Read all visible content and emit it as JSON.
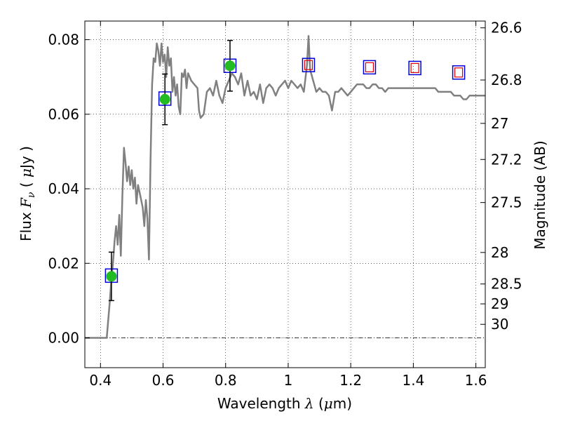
{
  "chart_data": {
    "type": "line",
    "xlabel": "Wavelength",
    "xlabel_symbol": "λ",
    "xlabel_unit_open": " (",
    "xlabel_unit_mu": "μ",
    "xlabel_unit_rest": "m)",
    "ylabel_text": "Flux",
    "ylabel_symbol": "F",
    "ylabel_sub": "ν",
    "ylabel_unit_open": "( ",
    "ylabel_unit_mu": "μ",
    "ylabel_unit_rest": "Jy )",
    "y2label": "Magnitude (AB)",
    "xlim": [
      0.35,
      1.63
    ],
    "ylim": [
      -0.008,
      0.085
    ],
    "grid": true,
    "x_ticks": [
      0.4,
      0.6,
      0.8,
      1.0,
      1.2,
      1.4,
      1.6
    ],
    "x_tick_labels": [
      "0.4",
      "0.6",
      "0.8",
      "1",
      "1.2",
      "1.4",
      "1.6"
    ],
    "y_ticks": [
      0.0,
      0.02,
      0.04,
      0.06,
      0.08
    ],
    "y_tick_labels": [
      "0.00",
      "0.02",
      "0.04",
      "0.06",
      "0.08"
    ],
    "mag_ticks": [
      {
        "label": "26.6",
        "mag": 26.6
      },
      {
        "label": "26.8",
        "mag": 26.8
      },
      {
        "label": "27",
        "mag": 27.0
      },
      {
        "label": "27.2",
        "mag": 27.2
      },
      {
        "label": "27.5",
        "mag": 27.5
      },
      {
        "label": "28",
        "mag": 28.0
      },
      {
        "label": "28.5",
        "mag": 28.5
      },
      {
        "label": "29",
        "mag": 29.0
      },
      {
        "label": "30",
        "mag": 30.0
      }
    ],
    "colors": {
      "spectrum": "#808080",
      "observed_marker": "#22bb22",
      "box_edge": "#0000dd",
      "model_inner": "#dd0000",
      "errorbar": "#000000"
    },
    "series": [
      {
        "kind": "spectrum",
        "points": [
          [
            0.35,
            0.0
          ],
          [
            0.42,
            0.0
          ],
          [
            0.43,
            0.01
          ],
          [
            0.435,
            0.016
          ],
          [
            0.44,
            0.02
          ],
          [
            0.445,
            0.026
          ],
          [
            0.45,
            0.03
          ],
          [
            0.455,
            0.025
          ],
          [
            0.46,
            0.033
          ],
          [
            0.465,
            0.022
          ],
          [
            0.47,
            0.038
          ],
          [
            0.475,
            0.051
          ],
          [
            0.48,
            0.047
          ],
          [
            0.485,
            0.042
          ],
          [
            0.49,
            0.046
          ],
          [
            0.495,
            0.041
          ],
          [
            0.5,
            0.045
          ],
          [
            0.505,
            0.04
          ],
          [
            0.51,
            0.043
          ],
          [
            0.515,
            0.036
          ],
          [
            0.52,
            0.041
          ],
          [
            0.525,
            0.039
          ],
          [
            0.53,
            0.037
          ],
          [
            0.535,
            0.035
          ],
          [
            0.54,
            0.03
          ],
          [
            0.545,
            0.037
          ],
          [
            0.55,
            0.032
          ],
          [
            0.555,
            0.021
          ],
          [
            0.56,
            0.048
          ],
          [
            0.565,
            0.068
          ],
          [
            0.57,
            0.075
          ],
          [
            0.575,
            0.074
          ],
          [
            0.58,
            0.079
          ],
          [
            0.585,
            0.077
          ],
          [
            0.59,
            0.073
          ],
          [
            0.595,
            0.079
          ],
          [
            0.6,
            0.074
          ],
          [
            0.605,
            0.076
          ],
          [
            0.61,
            0.07
          ],
          [
            0.615,
            0.078
          ],
          [
            0.62,
            0.073
          ],
          [
            0.625,
            0.075
          ],
          [
            0.63,
            0.066
          ],
          [
            0.635,
            0.07
          ],
          [
            0.64,
            0.065
          ],
          [
            0.645,
            0.068
          ],
          [
            0.65,
            0.062
          ],
          [
            0.655,
            0.06
          ],
          [
            0.66,
            0.071
          ],
          [
            0.665,
            0.07
          ],
          [
            0.67,
            0.072
          ],
          [
            0.675,
            0.067
          ],
          [
            0.68,
            0.071
          ],
          [
            0.69,
            0.069
          ],
          [
            0.7,
            0.068
          ],
          [
            0.71,
            0.067
          ],
          [
            0.715,
            0.061
          ],
          [
            0.72,
            0.059
          ],
          [
            0.73,
            0.06
          ],
          [
            0.74,
            0.066
          ],
          [
            0.75,
            0.067
          ],
          [
            0.76,
            0.065
          ],
          [
            0.77,
            0.069
          ],
          [
            0.78,
            0.065
          ],
          [
            0.79,
            0.063
          ],
          [
            0.8,
            0.067
          ],
          [
            0.81,
            0.069
          ],
          [
            0.82,
            0.071
          ],
          [
            0.83,
            0.07
          ],
          [
            0.84,
            0.068
          ],
          [
            0.85,
            0.071
          ],
          [
            0.86,
            0.065
          ],
          [
            0.87,
            0.069
          ],
          [
            0.88,
            0.065
          ],
          [
            0.89,
            0.066
          ],
          [
            0.9,
            0.064
          ],
          [
            0.91,
            0.068
          ],
          [
            0.92,
            0.063
          ],
          [
            0.93,
            0.067
          ],
          [
            0.94,
            0.068
          ],
          [
            0.95,
            0.067
          ],
          [
            0.96,
            0.065
          ],
          [
            0.97,
            0.067
          ],
          [
            0.98,
            0.068
          ],
          [
            0.99,
            0.069
          ],
          [
            1.0,
            0.067
          ],
          [
            1.01,
            0.069
          ],
          [
            1.02,
            0.068
          ],
          [
            1.03,
            0.067
          ],
          [
            1.04,
            0.068
          ],
          [
            1.05,
            0.066
          ],
          [
            1.06,
            0.073
          ],
          [
            1.065,
            0.081
          ],
          [
            1.07,
            0.072
          ],
          [
            1.08,
            0.069
          ],
          [
            1.09,
            0.066
          ],
          [
            1.1,
            0.067
          ],
          [
            1.11,
            0.066
          ],
          [
            1.12,
            0.066
          ],
          [
            1.13,
            0.065
          ],
          [
            1.14,
            0.061
          ],
          [
            1.15,
            0.066
          ],
          [
            1.16,
            0.066
          ],
          [
            1.17,
            0.067
          ],
          [
            1.18,
            0.066
          ],
          [
            1.19,
            0.065
          ],
          [
            1.2,
            0.066
          ],
          [
            1.21,
            0.067
          ],
          [
            1.22,
            0.068
          ],
          [
            1.23,
            0.068
          ],
          [
            1.24,
            0.068
          ],
          [
            1.25,
            0.067
          ],
          [
            1.26,
            0.067
          ],
          [
            1.27,
            0.068
          ],
          [
            1.28,
            0.068
          ],
          [
            1.29,
            0.067
          ],
          [
            1.3,
            0.067
          ],
          [
            1.31,
            0.066
          ],
          [
            1.32,
            0.067
          ],
          [
            1.33,
            0.067
          ],
          [
            1.34,
            0.067
          ],
          [
            1.35,
            0.067
          ],
          [
            1.36,
            0.067
          ],
          [
            1.37,
            0.067
          ],
          [
            1.38,
            0.067
          ],
          [
            1.39,
            0.067
          ],
          [
            1.4,
            0.067
          ],
          [
            1.41,
            0.067
          ],
          [
            1.42,
            0.067
          ],
          [
            1.43,
            0.067
          ],
          [
            1.44,
            0.067
          ],
          [
            1.45,
            0.067
          ],
          [
            1.46,
            0.067
          ],
          [
            1.47,
            0.067
          ],
          [
            1.48,
            0.066
          ],
          [
            1.49,
            0.066
          ],
          [
            1.5,
            0.066
          ],
          [
            1.51,
            0.066
          ],
          [
            1.52,
            0.066
          ],
          [
            1.53,
            0.065
          ],
          [
            1.54,
            0.065
          ],
          [
            1.55,
            0.065
          ],
          [
            1.56,
            0.064
          ],
          [
            1.57,
            0.064
          ],
          [
            1.58,
            0.065
          ],
          [
            1.59,
            0.065
          ],
          [
            1.6,
            0.065
          ],
          [
            1.61,
            0.065
          ],
          [
            1.62,
            0.065
          ],
          [
            1.63,
            0.065
          ]
        ]
      },
      {
        "kind": "observed",
        "points": [
          {
            "x": 0.435,
            "y": 0.0165,
            "err": 0.0065
          },
          {
            "x": 0.606,
            "y": 0.064,
            "err": 0.0068
          },
          {
            "x": 0.814,
            "y": 0.073,
            "err": 0.0068
          }
        ]
      },
      {
        "kind": "model",
        "points": [
          {
            "x": 0.435,
            "y": 0.0167,
            "inner": false
          },
          {
            "x": 0.606,
            "y": 0.0642,
            "inner": false
          },
          {
            "x": 0.814,
            "y": 0.073,
            "inner": false
          },
          {
            "x": 1.065,
            "y": 0.0732,
            "inner": true
          },
          {
            "x": 1.26,
            "y": 0.0726,
            "inner": true
          },
          {
            "x": 1.405,
            "y": 0.0724,
            "inner": true
          },
          {
            "x": 1.545,
            "y": 0.0712,
            "inner": true
          }
        ]
      }
    ]
  }
}
